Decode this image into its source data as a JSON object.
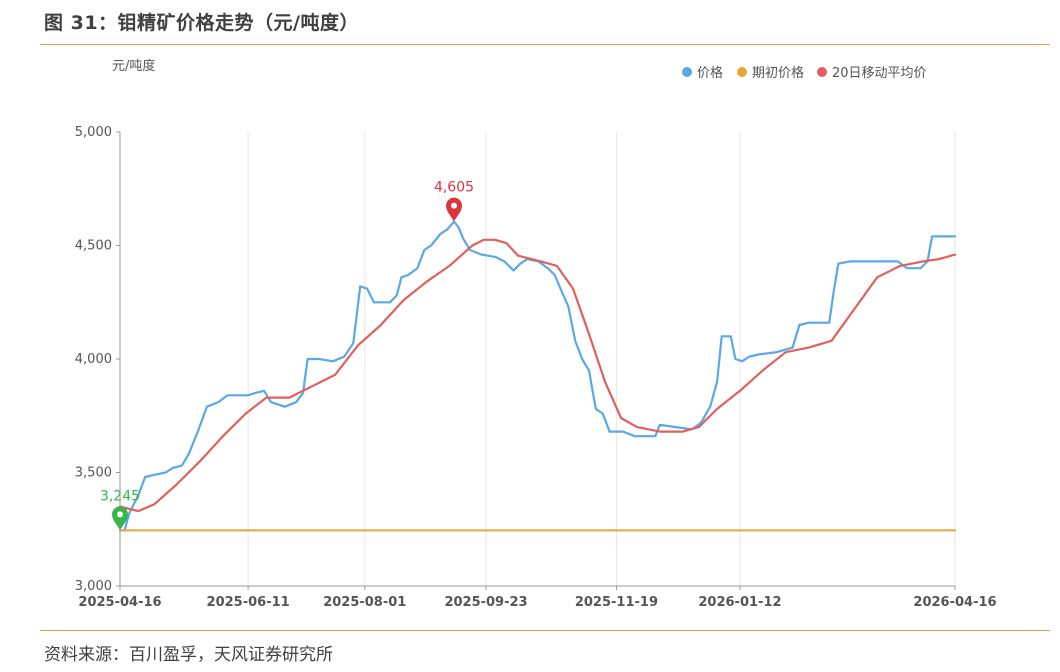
{
  "header": {
    "title": "图 31：钼精矿价格走势（元/吨度）"
  },
  "footer": {
    "source": "资料来源：百川盈孚，天风证券研究所"
  },
  "colors": {
    "price": "#5aa8e6",
    "initial": "#e5a53a",
    "ma20": "#e06060",
    "rule": "#e0a04a",
    "grid": "#e6e6e6"
  },
  "chart_data": {
    "type": "line",
    "ylabel": "元/吨度",
    "ylim": [
      3000,
      5000
    ],
    "yticks": [
      3000,
      3500,
      4000,
      4500,
      5000
    ],
    "ytick_labels": [
      "3,000",
      "3,500",
      "4,000",
      "4,500",
      "5,000"
    ],
    "xlim": [
      "2025-04-16",
      "2026-04-16"
    ],
    "xticks": [
      "2025-04-16",
      "2025-06-11",
      "2025-08-01",
      "2025-09-23",
      "2025-11-19",
      "2026-01-12",
      "2026-04-16"
    ],
    "legend_position": "top-right",
    "grid": "vertical",
    "series": [
      {
        "name": "价格",
        "key": "price",
        "points": [
          [
            "2025-04-16",
            3245
          ],
          [
            "2025-04-18",
            3245
          ],
          [
            "2025-04-20",
            3320
          ],
          [
            "2025-04-24",
            3400
          ],
          [
            "2025-04-27",
            3480
          ],
          [
            "2025-05-01",
            3490
          ],
          [
            "2025-05-06",
            3500
          ],
          [
            "2025-05-09",
            3520
          ],
          [
            "2025-05-13",
            3530
          ],
          [
            "2025-05-16",
            3580
          ],
          [
            "2025-05-20",
            3680
          ],
          [
            "2025-05-24",
            3790
          ],
          [
            "2025-05-29",
            3810
          ],
          [
            "2025-06-02",
            3840
          ],
          [
            "2025-06-11",
            3840
          ],
          [
            "2025-06-14",
            3850
          ],
          [
            "2025-06-18",
            3860
          ],
          [
            "2025-06-21",
            3810
          ],
          [
            "2025-06-27",
            3790
          ],
          [
            "2025-07-02",
            3810
          ],
          [
            "2025-07-05",
            3850
          ],
          [
            "2025-07-07",
            4000
          ],
          [
            "2025-07-12",
            4000
          ],
          [
            "2025-07-18",
            3990
          ],
          [
            "2025-07-23",
            4010
          ],
          [
            "2025-07-27",
            4070
          ],
          [
            "2025-07-30",
            4320
          ],
          [
            "2025-08-02",
            4310
          ],
          [
            "2025-08-05",
            4250
          ],
          [
            "2025-08-12",
            4250
          ],
          [
            "2025-08-15",
            4280
          ],
          [
            "2025-08-17",
            4360
          ],
          [
            "2025-08-20",
            4370
          ],
          [
            "2025-08-24",
            4400
          ],
          [
            "2025-08-27",
            4480
          ],
          [
            "2025-08-30",
            4500
          ],
          [
            "2025-09-03",
            4550
          ],
          [
            "2025-09-06",
            4570
          ],
          [
            "2025-09-09",
            4605
          ],
          [
            "2025-09-11",
            4580
          ],
          [
            "2025-09-13",
            4530
          ],
          [
            "2025-09-16",
            4480
          ],
          [
            "2025-09-21",
            4460
          ],
          [
            "2025-09-27",
            4450
          ],
          [
            "2025-10-01",
            4430
          ],
          [
            "2025-10-05",
            4390
          ],
          [
            "2025-10-08",
            4420
          ],
          [
            "2025-10-11",
            4440
          ],
          [
            "2025-10-16",
            4430
          ],
          [
            "2025-10-20",
            4400
          ],
          [
            "2025-10-23",
            4370
          ],
          [
            "2025-10-26",
            4300
          ],
          [
            "2025-10-29",
            4230
          ],
          [
            "2025-11-01",
            4080
          ],
          [
            "2025-11-04",
            4000
          ],
          [
            "2025-11-07",
            3950
          ],
          [
            "2025-11-10",
            3780
          ],
          [
            "2025-11-13",
            3760
          ],
          [
            "2025-11-16",
            3680
          ],
          [
            "2025-11-22",
            3680
          ],
          [
            "2025-11-27",
            3660
          ],
          [
            "2025-12-03",
            3660
          ],
          [
            "2025-12-06",
            3660
          ],
          [
            "2025-12-08",
            3710
          ],
          [
            "2025-12-15",
            3700
          ],
          [
            "2025-12-22",
            3690
          ],
          [
            "2025-12-26",
            3720
          ],
          [
            "2025-12-30",
            3790
          ],
          [
            "2026-01-02",
            3900
          ],
          [
            "2026-01-04",
            4100
          ],
          [
            "2026-01-08",
            4100
          ],
          [
            "2026-01-10",
            4000
          ],
          [
            "2026-01-13",
            3990
          ],
          [
            "2026-01-16",
            4010
          ],
          [
            "2026-01-20",
            4020
          ],
          [
            "2026-01-28",
            4030
          ],
          [
            "2026-02-04",
            4050
          ],
          [
            "2026-02-07",
            4150
          ],
          [
            "2026-02-11",
            4160
          ],
          [
            "2026-02-20",
            4160
          ],
          [
            "2026-02-22",
            4300
          ],
          [
            "2026-02-24",
            4420
          ],
          [
            "2026-03-01",
            4430
          ],
          [
            "2026-03-10",
            4430
          ],
          [
            "2026-03-22",
            4430
          ],
          [
            "2026-03-26",
            4400
          ],
          [
            "2026-04-01",
            4400
          ],
          [
            "2026-04-04",
            4430
          ],
          [
            "2026-04-06",
            4540
          ],
          [
            "2026-04-16",
            4540
          ]
        ]
      },
      {
        "name": "期初价格",
        "key": "initial",
        "points": [
          [
            "2025-04-16",
            3245
          ],
          [
            "2026-04-16",
            3245
          ]
        ]
      },
      {
        "name": "20日移动平均价",
        "key": "ma20",
        "points": [
          [
            "2025-04-16",
            3350
          ],
          [
            "2025-04-24",
            3330
          ],
          [
            "2025-05-01",
            3360
          ],
          [
            "2025-05-11",
            3450
          ],
          [
            "2025-05-21",
            3550
          ],
          [
            "2025-05-31",
            3660
          ],
          [
            "2025-06-10",
            3760
          ],
          [
            "2025-06-19",
            3830
          ],
          [
            "2025-06-29",
            3830
          ],
          [
            "2025-07-09",
            3880
          ],
          [
            "2025-07-19",
            3930
          ],
          [
            "2025-07-29",
            4060
          ],
          [
            "2025-08-08",
            4150
          ],
          [
            "2025-08-18",
            4260
          ],
          [
            "2025-08-28",
            4340
          ],
          [
            "2025-09-07",
            4410
          ],
          [
            "2025-09-17",
            4500
          ],
          [
            "2025-09-22",
            4525
          ],
          [
            "2025-09-27",
            4525
          ],
          [
            "2025-10-02",
            4510
          ],
          [
            "2025-10-07",
            4455
          ],
          [
            "2025-10-17",
            4430
          ],
          [
            "2025-10-24",
            4410
          ],
          [
            "2025-10-31",
            4310
          ],
          [
            "2025-11-07",
            4110
          ],
          [
            "2025-11-14",
            3900
          ],
          [
            "2025-11-21",
            3740
          ],
          [
            "2025-11-28",
            3700
          ],
          [
            "2025-12-08",
            3680
          ],
          [
            "2025-12-18",
            3680
          ],
          [
            "2025-12-25",
            3700
          ],
          [
            "2026-01-02",
            3780
          ],
          [
            "2026-01-12",
            3860
          ],
          [
            "2026-01-22",
            3950
          ],
          [
            "2026-02-01",
            4030
          ],
          [
            "2026-02-11",
            4050
          ],
          [
            "2026-02-21",
            4080
          ],
          [
            "2026-03-03",
            4220
          ],
          [
            "2026-03-13",
            4360
          ],
          [
            "2026-03-23",
            4410
          ],
          [
            "2026-04-02",
            4430
          ],
          [
            "2026-04-09",
            4440
          ],
          [
            "2026-04-16",
            4460
          ]
        ]
      }
    ],
    "annotations": [
      {
        "label": "3,245",
        "date": "2025-04-16",
        "value": 3245,
        "color": "#39b54a"
      },
      {
        "label": "4,605",
        "date": "2025-09-09",
        "value": 4605,
        "color": "#d9363e"
      }
    ]
  }
}
